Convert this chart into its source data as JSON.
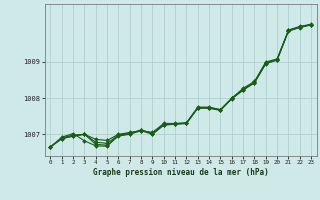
{
  "title": "Graphe pression niveau de la mer (hPa)",
  "background_color": "#cfe8e8",
  "grid_color": "#b0d0d0",
  "line_color": "#1a5c1a",
  "x_labels": [
    "0",
    "1",
    "2",
    "3",
    "4",
    "5",
    "6",
    "7",
    "8",
    "9",
    "10",
    "11",
    "12",
    "13",
    "14",
    "15",
    "16",
    "17",
    "18",
    "19",
    "20",
    "21",
    "22",
    "23"
  ],
  "ylim": [
    1006.4,
    1010.6
  ],
  "yticks": [
    1007,
    1008,
    1009
  ],
  "series": [
    [
      1006.65,
      1006.88,
      1006.95,
      1007.0,
      1006.86,
      1006.83,
      1007.0,
      1007.05,
      1007.1,
      1007.05,
      1007.3,
      1007.3,
      1007.32,
      1007.75,
      1007.75,
      1007.68,
      1008.0,
      1008.27,
      1008.46,
      1009.0,
      1009.08,
      1009.88,
      1009.98,
      1010.04
    ],
    [
      1006.65,
      1006.88,
      1006.95,
      1007.0,
      1006.72,
      1006.7,
      1006.95,
      1007.0,
      1007.1,
      1007.0,
      1007.25,
      1007.28,
      1007.3,
      1007.72,
      1007.72,
      1007.66,
      1007.98,
      1008.22,
      1008.42,
      1008.95,
      1009.05,
      1009.85,
      1009.95,
      1010.02
    ],
    [
      1006.65,
      1006.92,
      1007.02,
      1006.82,
      1006.68,
      1006.67,
      1006.97,
      1007.02,
      1007.12,
      1007.02,
      1007.28,
      1007.28,
      1007.3,
      1007.74,
      1007.74,
      1007.68,
      1007.99,
      1008.24,
      1008.44,
      1008.97,
      1009.07,
      1009.87,
      1009.97,
      1010.03
    ],
    [
      1006.65,
      1006.9,
      1006.98,
      1007.0,
      1006.78,
      1006.75,
      1006.98,
      1007.03,
      1007.11,
      1007.03,
      1007.27,
      1007.29,
      1007.31,
      1007.73,
      1007.73,
      1007.67,
      1007.99,
      1008.23,
      1008.43,
      1008.96,
      1009.06,
      1009.86,
      1009.96,
      1010.03
    ]
  ]
}
